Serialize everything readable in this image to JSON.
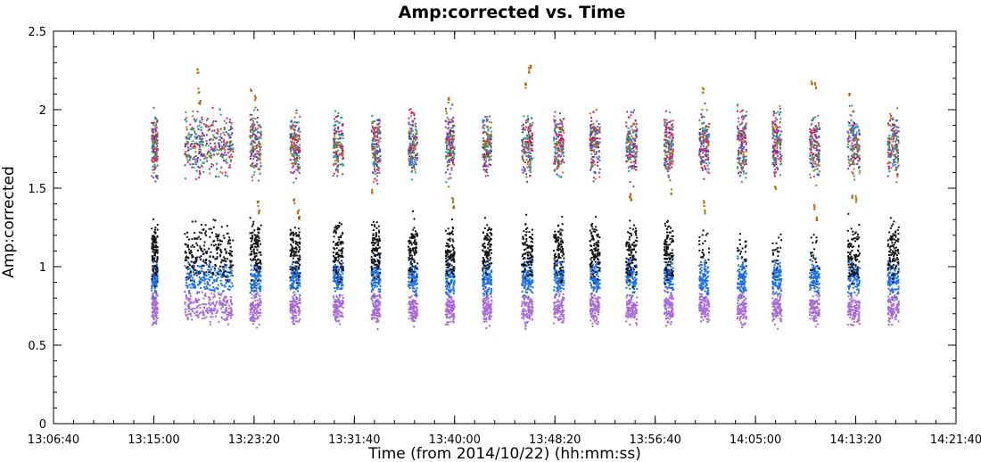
{
  "chart_data": {
    "type": "scatter",
    "title": "Amp:corrected vs. Time",
    "xlabel": "Time (from 2014/10/22) (hh:mm:ss)",
    "ylabel": "Amp:corrected",
    "x_ticks": [
      "13:06:40",
      "13:15:00",
      "13:23:20",
      "13:31:40",
      "13:40:00",
      "13:48:20",
      "13:56:40",
      "14:05:00",
      "14:13:20",
      "14:21:40"
    ],
    "y_ticks": [
      "0",
      "0.5",
      "1",
      "1.5",
      "2",
      "2.5"
    ],
    "xlim": [
      "13:06:40",
      "14:21:40"
    ],
    "ylim": [
      0,
      2.5
    ],
    "grid": false,
    "scan_start_times": [
      "13:14:50",
      "13:17:35",
      "13:23:00",
      "13:26:20",
      "13:29:55",
      "13:33:05",
      "13:36:10",
      "13:39:15",
      "13:42:20",
      "13:45:35",
      "13:48:15",
      "13:51:15",
      "13:54:15",
      "13:57:25",
      "14:00:20",
      "14:03:30",
      "14:06:25",
      "14:09:30",
      "14:12:40",
      "14:16:00"
    ],
    "scan_end_times": [
      "13:15:20",
      "13:21:35",
      "13:23:55",
      "13:27:10",
      "13:30:45",
      "13:33:50",
      "13:36:55",
      "13:40:00",
      "13:43:05",
      "13:46:30",
      "13:49:05",
      "13:52:05",
      "13:55:10",
      "13:58:10",
      "14:01:10",
      "14:04:15",
      "14:07:10",
      "14:10:20",
      "14:13:40",
      "14:16:55"
    ],
    "series": [
      {
        "color": "#c22a8a",
        "y_range": [
          1.5,
          2.05
        ],
        "palette": [
          "#c22a8a",
          "#e0245a",
          "#2a8fd8",
          "#3aa83a",
          "#8a3ab8",
          "#d86a1e",
          "#1f9aa0",
          "#b0204a",
          "#6a8a20",
          "#3050c0"
        ]
      },
      {
        "color": "#111111",
        "y_range": [
          0.85,
          1.35
        ]
      },
      {
        "color": "#1a6fe8",
        "y_range": [
          0.78,
          1.08
        ]
      },
      {
        "color": "#a86ad8",
        "y_range": [
          0.6,
          0.87
        ]
      },
      {
        "color": "#b06a0a",
        "outlier_points": [
          [
            "13:18:40",
            2.25
          ],
          [
            "13:18:45",
            2.12
          ],
          [
            "13:18:50",
            2.05
          ],
          [
            "13:23:05",
            2.11
          ],
          [
            "13:23:25",
            2.08
          ],
          [
            "13:23:40",
            1.4
          ],
          [
            "13:23:45",
            1.35
          ],
          [
            "13:26:40",
            1.42
          ],
          [
            "13:27:00",
            1.35
          ],
          [
            "13:27:05",
            1.31
          ],
          [
            "13:33:10",
            1.47
          ],
          [
            "13:39:30",
            2.06
          ],
          [
            "13:39:50",
            1.42
          ],
          [
            "13:39:55",
            1.38
          ],
          [
            "13:45:55",
            2.15
          ],
          [
            "13:46:10",
            2.25
          ],
          [
            "13:46:20",
            2.27
          ],
          [
            "13:54:35",
            1.45
          ],
          [
            "13:54:40",
            1.42
          ],
          [
            "13:58:00",
            1.48
          ],
          [
            "14:00:40",
            2.12
          ],
          [
            "14:00:45",
            1.4
          ],
          [
            "14:00:50",
            1.35
          ],
          [
            "14:06:45",
            1.9
          ],
          [
            "14:06:40",
            1.5
          ],
          [
            "14:09:40",
            2.17
          ],
          [
            "14:10:00",
            2.15
          ],
          [
            "14:09:55",
            1.38
          ],
          [
            "14:10:05",
            1.3
          ],
          [
            "14:12:50",
            2.1
          ],
          [
            "14:13:05",
            1.45
          ],
          [
            "14:13:20",
            1.43
          ]
        ]
      }
    ]
  }
}
